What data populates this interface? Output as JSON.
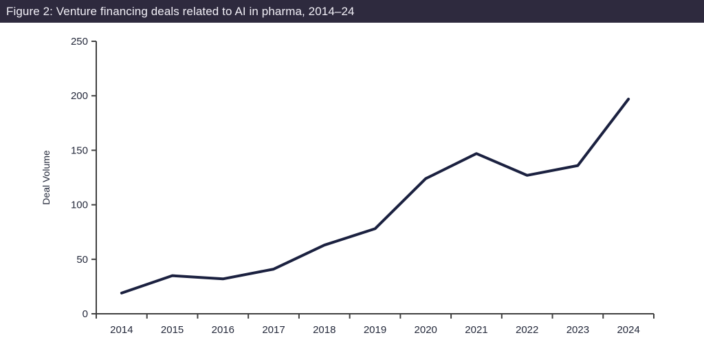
{
  "header": {
    "title": "Figure 2: Venture financing deals related to AI in pharma, 2014–24"
  },
  "chart_data": {
    "type": "line",
    "title": "Figure 2: Venture financing deals related to AI in pharma, 2014–24",
    "categories": [
      "2014",
      "2015",
      "2016",
      "2017",
      "2018",
      "2019",
      "2020",
      "2021",
      "2022",
      "2023",
      "2024"
    ],
    "values": [
      19,
      35,
      32,
      41,
      63,
      78,
      124,
      147,
      127,
      136,
      197
    ],
    "xlabel": "",
    "ylabel": "Deal Volume",
    "ylim": [
      0,
      250
    ],
    "ytick_step": 50,
    "yticks": [
      0,
      50,
      100,
      150,
      200,
      250
    ],
    "grid": false,
    "legend": false
  },
  "colors": {
    "header_bg": "#2e2a3e",
    "header_text": "#f2f0f7",
    "line": "#1b2140",
    "axis": "#404040",
    "tick_label": "#23283a",
    "background": "#ffffff"
  }
}
